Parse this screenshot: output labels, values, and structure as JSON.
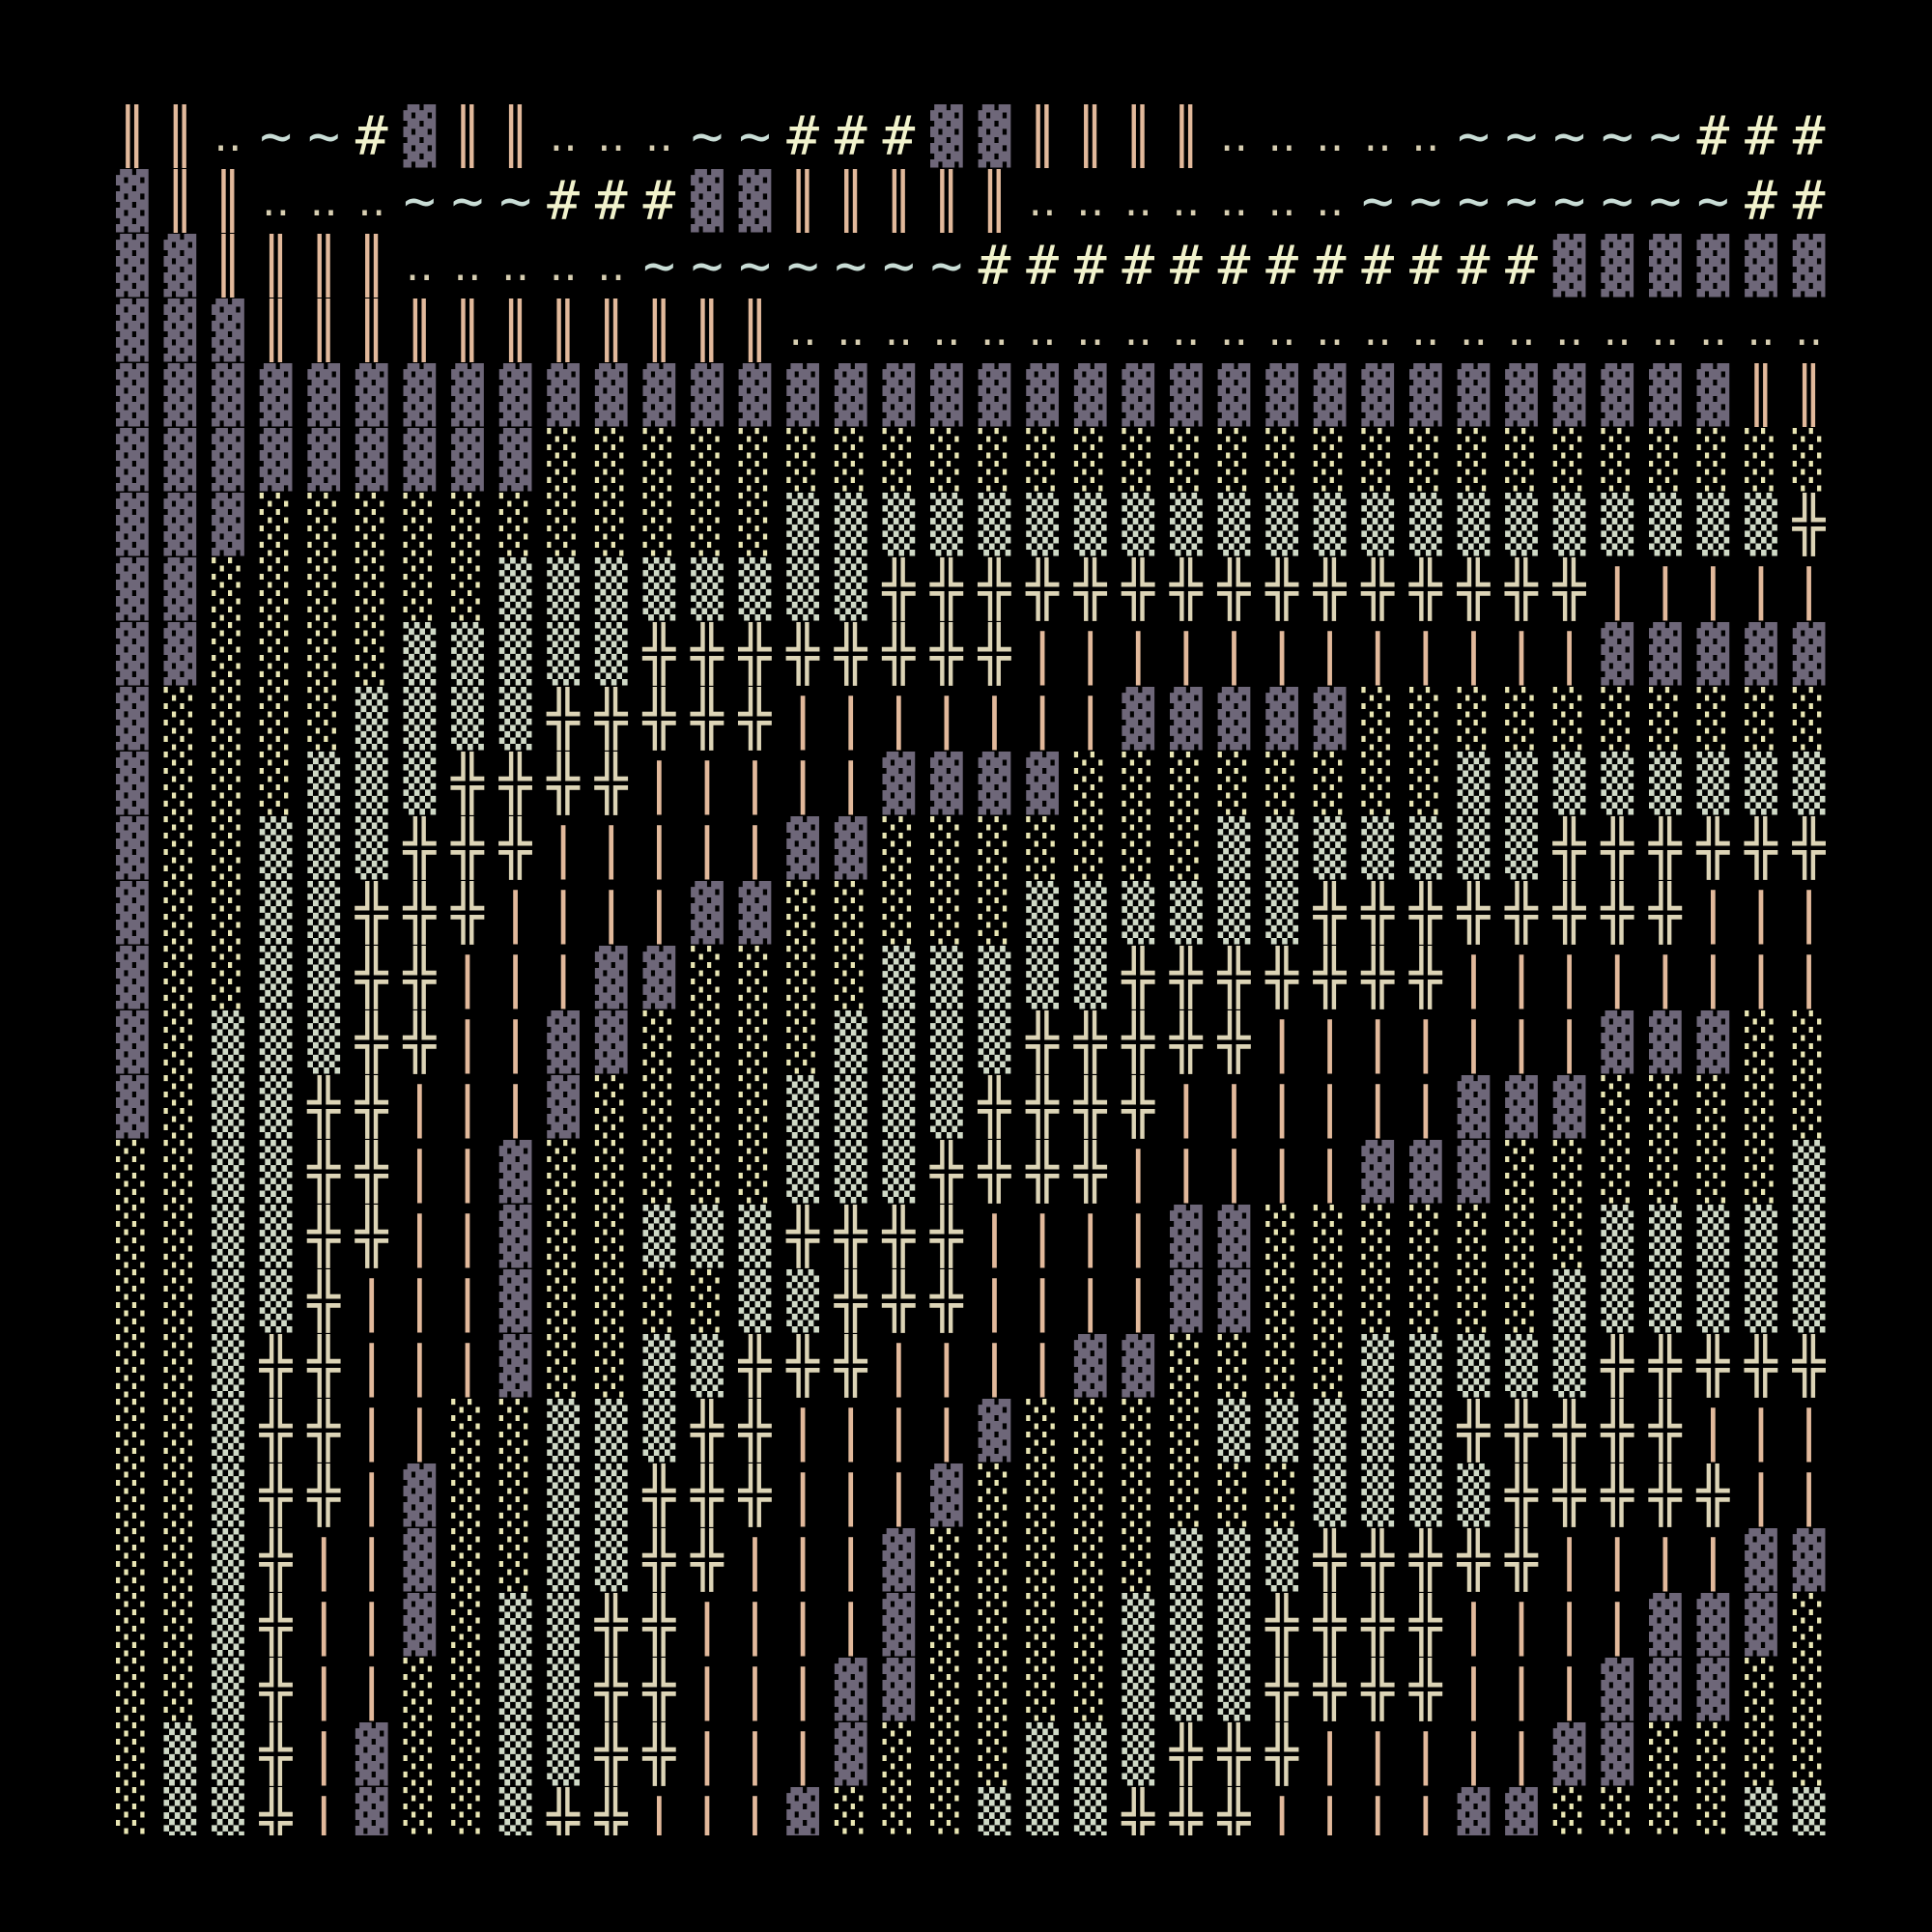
{
  "palette": {
    "background": "#000000",
    "block": "#6e6779",
    "light_shade": "#e9e6b4",
    "medium_shade": "#cfd9c6",
    "double_bar": "#e2b99b",
    "pipe": "#e2b99b",
    "cross": "#dcd4b6",
    "dots": "#d8cfb2",
    "tilde": "#c9ddd6",
    "hash": "#f1f2cc"
  },
  "art": {
    "rows": [
      "║║‥~~#▓║║‥‥‥~~###▓▓║║║║‥‥‥‥‥~~~~~####",
      "▓║║‥‥‥~~~###▓▓║║║║║‥‥‥‥‥‥‥~~~~~~~~###",
      "▓▓║║║║‥‥‥‥‥~~~~~~~############▓▓▓▓▓▓▓",
      "▓▓▓║║║║║║║║║║║‥‥‥‥‥‥‥‥‥‥‥‥‥‥‥‥‥‥‥‥‥‥‥",
      "▓▓▓▓▓▓▓▓▓▓▓▓▓▓▓▓▓▓▓▓▓▓▓▓▓▓▓▓▓▓▓▓▓▓║║ ",
      "▓▓▓▓▓▓▓▓▓░░░░░░░░░░░░░░░░░░░░░░░░░░░░",
      "▓▓▓░░░░░░░░░░░▒▒▒▒▒▒▒▒▒▒▒▒▒▒▒▒▒▒▒▒▒╬╬",
      "▓▓░░░░░░▒▒▒▒▒▒▒▒╬╬╬╬╬╬╬╬╬╬╬╬╬╬╬||||||",
      "▓▓░░░░▒▒▒▒▒╬╬╬╬╬╬╬╬||||||||||||▓▓▓▓▓▓",
      "▓░░░░▒▒▒▒╬╬╬╬╬|||||||▓▓▓▓▓░░░░░░░░░░░",
      "▓░░░▒▒▒╬╬╬╬|||||▓▓▓▓░░░░░░░░▒▒▒▒▒▒▒▒▒",
      "▓░░▒▒▒╬╬╬|||||▓▓░░░░░░░▒▒▒▒▒▒▒╬╬╬╬╬╬╬",
      "▓░░▒▒╬╬╬||||▓▓░░░░░▒▒▒▒▒▒╬╬╬╬╬╬╬╬||||",
      "▓░░▒▒╬╬|||▓▓░░░░▒▒▒▒▒╬╬╬╬╬╬╬|||||||||",
      "▓░▒▒▒╬╬||▓▓░░░░▒▒▒▒╬╬╬╬╬|||||||▓▓▓░░░",
      "▓░▒▒╬╬|||▓░░░░▒▒▒▒╬╬╬╬||||||▓▓▓░░░░░░",
      "░░▒▒╬╬||▓░░░░░▒▒▒╬╬╬╬|||||▓▓▓░░░░░░▒▒",
      "░░▒▒╬╬||▓░░▒▒▒╬╬╬╬||||▓▓░░░░░░░▒▒▒▒▒▒",
      "░░▒▒╬|||▓░░░░▒▒╬╬╬||||▓▓░░░░░░▒▒▒▒▒▒╬",
      "░░▒╬╬|||▓░░▒▒╬╬╬||||▓▓░░░░▒▒▒▒▒╬╬╬╬╬╬",
      "░░▒╬╬||░░▒▒▒╬╬||||▓░░░░▒▒▒▒▒╬╬╬╬╬||||",
      "░░▒╬╬|▓░░▒▒╬╬╬|||▓░░░░░░░▒▒▒▒╬╬╬╬╬|||",
      "░░▒╬||▓░░▒▒╬╬|||▓░░░░░▒▒▒╬╬╬╬╬||||▓▓▓",
      "░░▒╬||▓░▒▒╬╬||||▓░░░░▒▒▒╬╬╬╬||||▓▓▓░░",
      "░░▒╬||░░▒▒╬╬|||▓▓░░░░▒▒▒╬╬╬╬|||▓▓▓░░░",
      "░▒▒╬|▓░░▒▒╬╬|||▓░░░▒▒▒╬╬╬|||||▓▓░░░░░",
      "░▒▒╬|▓░░▒╬╬|||▓░░░▒▒▒╬╬╬||||▓▓░░░░▒▒░"
    ]
  }
}
